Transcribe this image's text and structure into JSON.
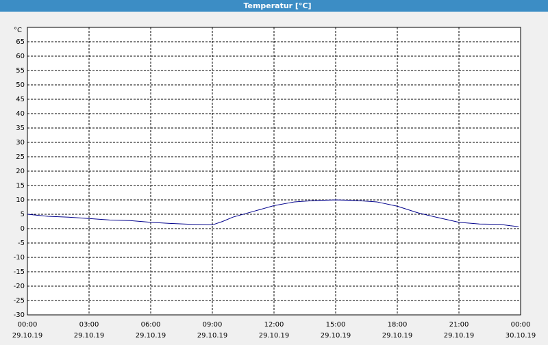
{
  "chart_data": {
    "type": "line",
    "title": "Temperatur [°C]",
    "y_unit": "°C",
    "x": [
      0,
      1,
      2,
      3,
      4,
      5,
      6,
      7,
      8,
      9,
      9.5,
      10,
      11,
      12,
      13,
      14,
      15,
      16,
      17,
      18,
      19,
      20,
      21,
      22,
      23,
      23.5,
      23.9
    ],
    "series": [
      {
        "name": "Temperatur",
        "color": "#00008b",
        "values": [
          5.0,
          4.3,
          4.0,
          3.5,
          3.0,
          2.8,
          2.2,
          1.8,
          1.5,
          1.3,
          2.5,
          4.0,
          6.0,
          8.0,
          9.3,
          9.8,
          10.0,
          9.8,
          9.3,
          7.8,
          5.5,
          3.8,
          2.2,
          1.6,
          1.5,
          1.0,
          0.7
        ]
      }
    ],
    "xlim": [
      0,
      24
    ],
    "xticks": [
      {
        "value": 0,
        "label": "00:00"
      },
      {
        "value": 3,
        "label": "03:00"
      },
      {
        "value": 6,
        "label": "06:00"
      },
      {
        "value": 9,
        "label": "09:00"
      },
      {
        "value": 12,
        "label": "12:00"
      },
      {
        "value": 15,
        "label": "15:00"
      },
      {
        "value": 18,
        "label": "18:00"
      },
      {
        "value": 21,
        "label": "21:00"
      },
      {
        "value": 24,
        "label": "00:00"
      }
    ],
    "xtick_dates": [
      "29.10.19",
      "29.10.19",
      "29.10.19",
      "29.10.19",
      "29.10.19",
      "29.10.19",
      "29.10.19",
      "29.10.19",
      "30.10.19"
    ],
    "ylim": [
      -30,
      70
    ],
    "yticks": [
      -30,
      -25,
      -20,
      -15,
      -10,
      -5,
      0,
      5,
      10,
      15,
      20,
      25,
      30,
      35,
      40,
      45,
      50,
      55,
      60,
      65
    ],
    "grid": true
  }
}
